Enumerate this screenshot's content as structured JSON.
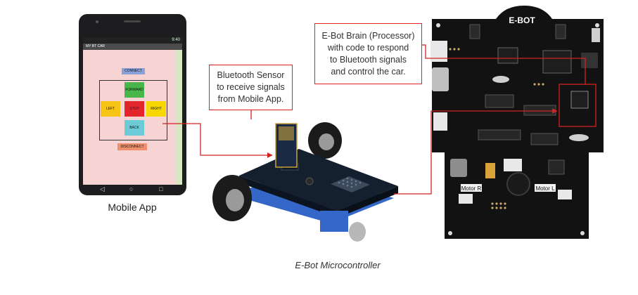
{
  "phone": {
    "status_time": "9:40",
    "app_title": "MY BT CAR",
    "buttons": {
      "connect": "CONNECT",
      "forward": "FORWARD",
      "left": "LEFT",
      "stop": "STOP",
      "right": "RIGHT",
      "back": "BACK",
      "disconnect": "DISCONNECT"
    },
    "nav": {
      "back": "◁",
      "home": "○",
      "recent": "□"
    }
  },
  "labels": {
    "mobile_app": "Mobile App",
    "caption": "E-Bot Microcontroller",
    "board_logo": "E-BOT",
    "motor_r": "Motor R",
    "motor_l": "Motor L"
  },
  "callouts": {
    "bluetooth_lines": [
      "Bluetooth Sensor",
      "to receive signals",
      "from Mobile App."
    ],
    "brain_lines": [
      "E-Bot Brain (Processor)",
      "with code to respond",
      "to Bluetooth signals",
      "and control the car."
    ]
  },
  "colors": {
    "annotation_red": "#d22222",
    "board_black": "#121212",
    "screen_pink": "#f7d4d4"
  }
}
